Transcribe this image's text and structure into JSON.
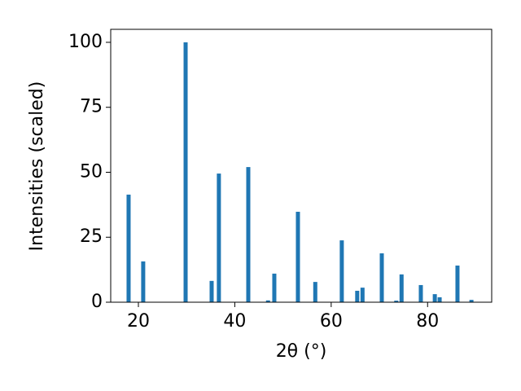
{
  "chart_data": {
    "type": "bar",
    "xlabel": "2θ (°)",
    "ylabel": "Intensities (scaled)",
    "x": [
      17.97,
      21.0,
      29.8,
      35.2,
      36.7,
      42.8,
      46.9,
      48.2,
      53.1,
      56.7,
      62.2,
      65.4,
      66.5,
      70.5,
      73.5,
      74.6,
      78.6,
      81.5,
      82.5,
      86.2,
      89.1
    ],
    "values": [
      41.4,
      15.7,
      100,
      8.2,
      49.5,
      52,
      0.7,
      11,
      34.8,
      7.8,
      23.8,
      4.4,
      5.6,
      18.8,
      0.6,
      10.7,
      6.6,
      3.1,
      1.9,
      14.1,
      0.9
    ],
    "color": "#1f77b4",
    "xlim": [
      14.26,
      93.3
    ],
    "ylim": [
      0,
      105
    ],
    "xticks": [
      20,
      40,
      60,
      80
    ],
    "yticks": [
      0,
      25,
      50,
      75,
      100
    ]
  }
}
